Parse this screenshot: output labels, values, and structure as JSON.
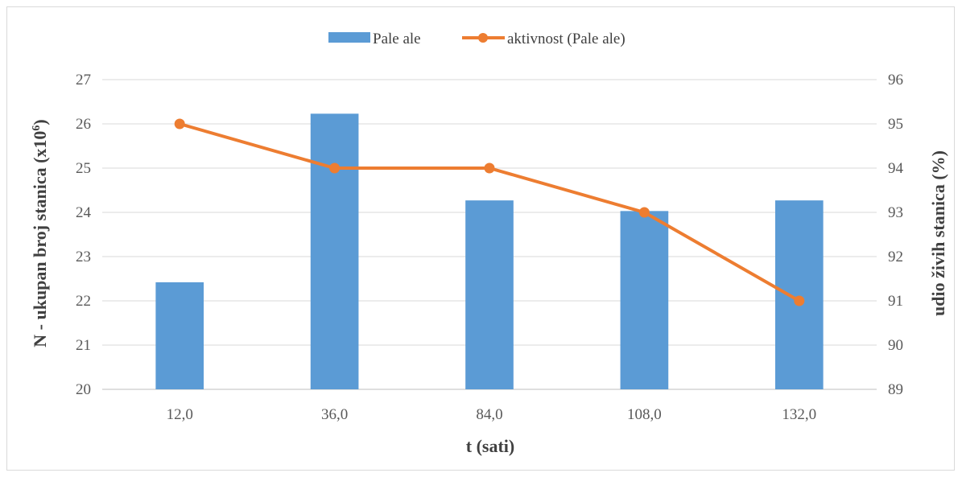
{
  "chart_data": {
    "type": "bar+line",
    "categories": [
      "12,0",
      "36,0",
      "84,0",
      "108,0",
      "132,0"
    ],
    "series": [
      {
        "name": "Pale ale",
        "type": "bar",
        "axis": "left",
        "color": "#5b9bd5",
        "values": [
          22.42,
          26.23,
          24.27,
          24.03,
          24.27
        ]
      },
      {
        "name": "aktivnost (Pale ale)",
        "type": "line",
        "axis": "right",
        "color": "#ed7d31",
        "values": [
          95,
          94,
          94,
          93,
          91
        ]
      }
    ],
    "xlabel": "t (sati)",
    "ylabel_left_main": "N - ukupan broj stanica (x10",
    "ylabel_left_sup": "6",
    "ylabel_left_end": ")",
    "ylabel_right": "udio živih stanica (%)",
    "ylim_left": [
      20,
      27
    ],
    "yticks_left": [
      "20",
      "21",
      "22",
      "23",
      "24",
      "25",
      "26",
      "27"
    ],
    "ylim_right": [
      89,
      96
    ],
    "yticks_right": [
      "89",
      "90",
      "91",
      "92",
      "93",
      "94",
      "95",
      "96"
    ],
    "grid": true,
    "legend_position": "top"
  }
}
